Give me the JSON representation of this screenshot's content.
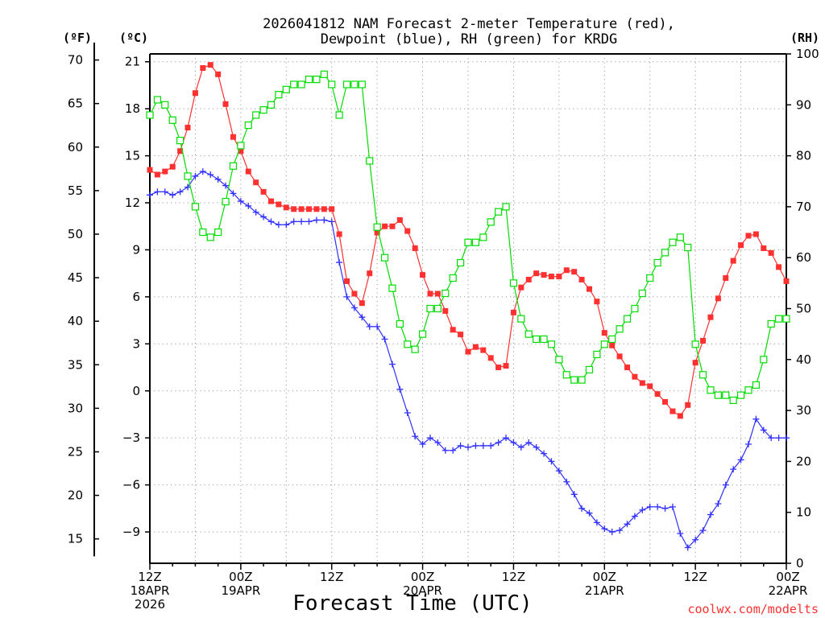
{
  "chart_data": {
    "type": "line",
    "title_line1": "2026041812 NAM Forecast 2-meter Temperature (red),",
    "title_line2": "Dewpoint (blue), RH (green) for KRDG",
    "unit_labels": {
      "fahrenheit": "(ºF)",
      "celsius": "(ºC)",
      "rh": "(RH)"
    },
    "xlabel": "Forecast Time (UTC)",
    "credit": "coolwx.com/modelts",
    "x_range_hours": [
      0,
      84
    ],
    "celsius_range": [
      -11,
      21.5
    ],
    "rh_range": [
      0,
      100
    ],
    "fahrenheit_ticks": [
      15,
      20,
      25,
      30,
      35,
      40,
      45,
      50,
      55,
      60,
      65,
      70
    ],
    "celsius_ticks": [
      -9,
      -6,
      -3,
      0,
      3,
      6,
      9,
      12,
      15,
      18,
      21
    ],
    "rh_ticks": [
      0,
      10,
      20,
      30,
      40,
      50,
      60,
      70,
      80,
      90,
      100
    ],
    "x_ticks": [
      {
        "hour": 0,
        "lines": [
          "12Z",
          "18APR",
          "2026"
        ]
      },
      {
        "hour": 12,
        "lines": [
          "00Z",
          "19APR"
        ]
      },
      {
        "hour": 24,
        "lines": [
          "12Z"
        ]
      },
      {
        "hour": 36,
        "lines": [
          "00Z",
          "20APR"
        ]
      },
      {
        "hour": 48,
        "lines": [
          "12Z"
        ]
      },
      {
        "hour": 60,
        "lines": [
          "00Z",
          "21APR"
        ]
      },
      {
        "hour": 72,
        "lines": [
          "12Z"
        ]
      },
      {
        "hour": 84,
        "lines": [
          "00Z",
          "22APR"
        ]
      }
    ],
    "hours": [
      0,
      1,
      2,
      3,
      4,
      5,
      6,
      7,
      8,
      9,
      10,
      11,
      12,
      13,
      14,
      15,
      16,
      17,
      18,
      19,
      20,
      21,
      22,
      23,
      24,
      25,
      26,
      27,
      28,
      29,
      30,
      31,
      32,
      33,
      34,
      35,
      36,
      37,
      38,
      39,
      40,
      41,
      42,
      43,
      44,
      45,
      46,
      47,
      48,
      49,
      50,
      51,
      52,
      53,
      54,
      55,
      56,
      57,
      58,
      59,
      60,
      61,
      62,
      63,
      64,
      65,
      66,
      67,
      68,
      69,
      70,
      71,
      72,
      73,
      74,
      75,
      76,
      77,
      78,
      79,
      80,
      81,
      82,
      83,
      84
    ],
    "series": [
      {
        "name": "Temperature",
        "unit": "C",
        "color": "#ff3030",
        "marker": "filled-square",
        "values": [
          14.1,
          13.8,
          14.0,
          14.3,
          15.3,
          16.8,
          19.0,
          20.6,
          20.8,
          20.2,
          18.3,
          16.2,
          15.3,
          14.0,
          13.3,
          12.7,
          12.1,
          11.9,
          11.7,
          11.6,
          11.6,
          11.6,
          11.6,
          11.6,
          11.6,
          10.0,
          7.0,
          6.2,
          5.6,
          7.5,
          10.1,
          10.5,
          10.5,
          10.9,
          10.2,
          9.1,
          7.4,
          6.2,
          6.2,
          5.1,
          3.9,
          3.6,
          2.5,
          2.8,
          2.6,
          2.1,
          1.5,
          1.6,
          5.0,
          6.6,
          7.1,
          7.5,
          7.4,
          7.3,
          7.3,
          7.7,
          7.6,
          7.1,
          6.5,
          5.7,
          3.7,
          2.9,
          2.2,
          1.5,
          0.9,
          0.5,
          0.3,
          -0.2,
          -0.7,
          -1.3,
          -1.6,
          -0.9,
          1.8,
          3.2,
          4.7,
          5.9,
          7.2,
          8.3,
          9.3,
          9.9,
          10.0,
          9.1,
          8.8,
          7.9,
          7.0
        ]
      },
      {
        "name": "Dewpoint",
        "unit": "C",
        "color": "#3030ff",
        "marker": "plus",
        "values": [
          12.5,
          12.7,
          12.7,
          12.5,
          12.7,
          13.0,
          13.7,
          14.0,
          13.8,
          13.5,
          13.1,
          12.6,
          12.1,
          11.8,
          11.4,
          11.1,
          10.8,
          10.6,
          10.6,
          10.8,
          10.8,
          10.8,
          10.9,
          10.9,
          10.8,
          8.2,
          6.0,
          5.3,
          4.7,
          4.1,
          4.1,
          3.3,
          1.7,
          0.1,
          -1.4,
          -2.9,
          -3.4,
          -3.0,
          -3.3,
          -3.8,
          -3.8,
          -3.5,
          -3.6,
          -3.5,
          -3.5,
          -3.5,
          -3.3,
          -3.0,
          -3.3,
          -3.6,
          -3.3,
          -3.6,
          -4.0,
          -4.5,
          -5.1,
          -5.8,
          -6.6,
          -7.5,
          -7.8,
          -8.4,
          -8.8,
          -9.0,
          -8.9,
          -8.5,
          -8.0,
          -7.6,
          -7.4,
          -7.4,
          -7.5,
          -7.4,
          -9.1,
          -10.0,
          -9.5,
          -8.9,
          -7.9,
          -7.2,
          -6.0,
          -5.0,
          -4.4,
          -3.4,
          -1.8,
          -2.5,
          -3.0,
          -3.0,
          -3.0
        ]
      },
      {
        "name": "RH",
        "unit": "%",
        "color": "#00dd00",
        "marker": "open-square",
        "values": [
          88,
          91,
          90,
          87,
          83,
          76,
          70,
          65,
          64,
          65,
          71,
          78,
          82,
          86,
          88,
          89,
          90,
          92,
          93,
          94,
          94,
          95,
          95,
          96,
          94,
          88,
          94,
          94,
          94,
          79,
          66,
          60,
          54,
          47,
          43,
          42,
          45,
          50,
          50,
          53,
          56,
          59,
          63,
          63,
          64,
          67,
          69,
          70,
          55,
          48,
          45,
          44,
          44,
          43,
          40,
          37,
          36,
          36,
          38,
          41,
          43,
          44,
          46,
          48,
          50,
          53,
          56,
          59,
          61,
          63,
          64,
          62,
          43,
          37,
          34,
          33,
          33,
          32,
          33,
          34,
          35,
          40,
          47,
          48,
          48
        ]
      }
    ]
  }
}
